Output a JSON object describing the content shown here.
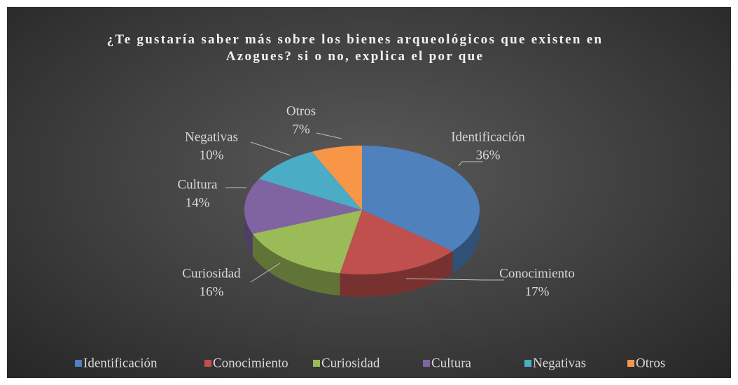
{
  "chart_data": {
    "type": "pie3d",
    "title": "¿Te gustaría saber más sobre los bienes arqueológicos que existen en Azogues? si o no, explica el por que",
    "categories": [
      "Identificación",
      "Conocimiento",
      "Curiosidad",
      "Cultura",
      "Negativas",
      "Otros"
    ],
    "values": [
      36,
      17,
      16,
      14,
      10,
      7
    ],
    "value_labels": [
      "36%",
      "17%",
      "16%",
      "14%",
      "10%",
      "7%"
    ],
    "colors": [
      "#4f81bd",
      "#c0504d",
      "#9bbb59",
      "#8064a2",
      "#4bacc6",
      "#f79646"
    ],
    "legend": "bottom"
  }
}
